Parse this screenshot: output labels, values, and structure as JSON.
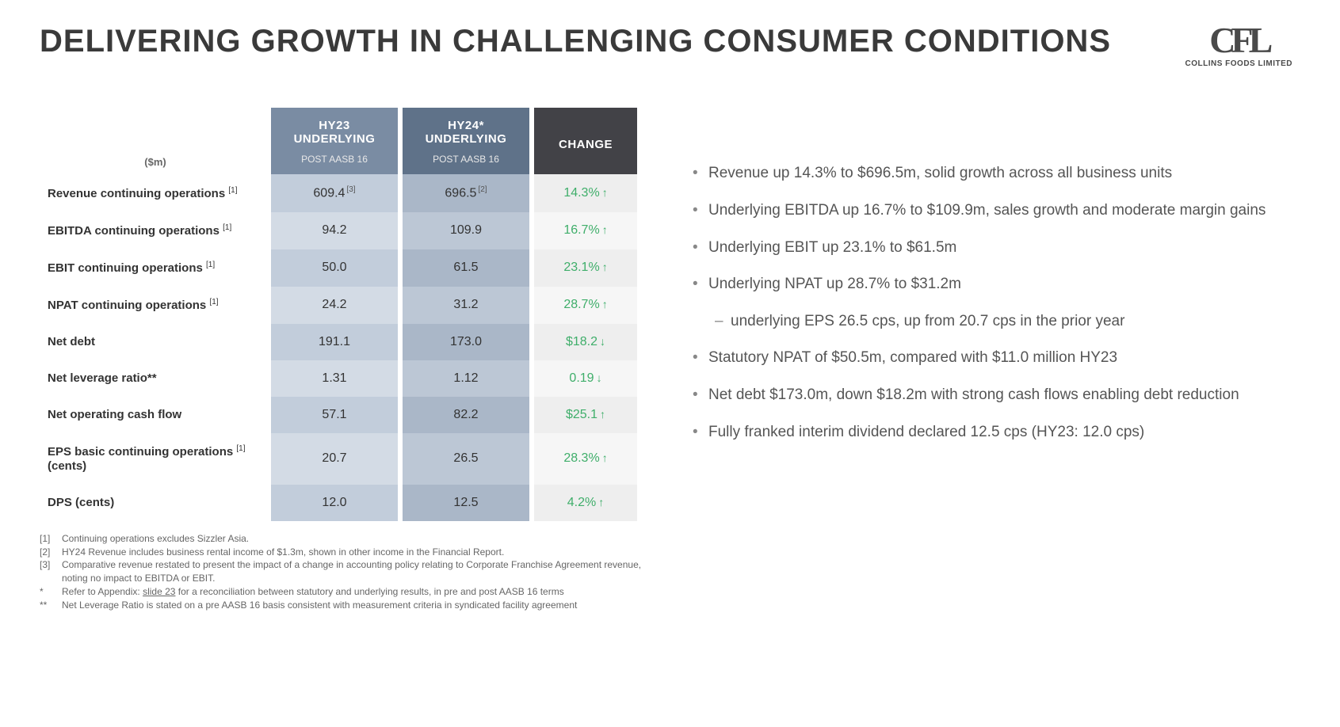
{
  "title": "DELIVERING GROWTH IN CHALLENGING CONSUMER CONDITIONS",
  "logo": {
    "mark": "CFL",
    "sub": "COLLINS FOODS LIMITED"
  },
  "table": {
    "unit_label": "($m)",
    "columns": [
      {
        "title": "HY23 UNDERLYING",
        "sub": "POST AASB 16",
        "bg": "#7a8ca3"
      },
      {
        "title": "HY24* UNDERLYING",
        "sub": "POST AASB 16",
        "bg": "#5f7289"
      },
      {
        "title": "CHANGE",
        "sub": "",
        "bg": "#424247"
      }
    ],
    "rows": [
      {
        "label": "Revenue continuing operations",
        "label_sup": "[1]",
        "v1": "609.4",
        "v1_sup": "[3]",
        "v2": "696.5",
        "v2_sup": "[2]",
        "change": "14.3%",
        "arrow": "↑"
      },
      {
        "label": "EBITDA continuing operations",
        "label_sup": "[1]",
        "v1": "94.2",
        "v2": "109.9",
        "change": "16.7%",
        "arrow": "↑"
      },
      {
        "label": "EBIT continuing operations",
        "label_sup": "[1]",
        "v1": "50.0",
        "v2": "61.5",
        "change": "23.1%",
        "arrow": "↑"
      },
      {
        "label": "NPAT continuing operations",
        "label_sup": "[1]",
        "v1": "24.2",
        "v2": "31.2",
        "change": "28.7%",
        "arrow": "↑"
      },
      {
        "label": "Net debt",
        "v1": "191.1",
        "v2": "173.0",
        "change": "$18.2",
        "arrow": "↓"
      },
      {
        "label": "Net leverage ratio**",
        "v1": "1.31",
        "v2": "1.12",
        "change": "0.19",
        "arrow": "↓"
      },
      {
        "label": "Net operating cash flow",
        "v1": "57.1",
        "v2": "82.2",
        "change": "$25.1",
        "arrow": "↑"
      },
      {
        "label": "EPS basic continuing operations [1] (cents)",
        "label_is_multiline": true,
        "label_main": "EPS basic continuing operations",
        "label_sup": "[1]",
        "label_line2": "(cents)",
        "v1": "20.7",
        "v2": "26.5",
        "change": "28.3%",
        "arrow": "↑"
      },
      {
        "label": "DPS (cents)",
        "v1": "12.0",
        "v2": "12.5",
        "change": "4.2%",
        "arrow": "↑"
      }
    ]
  },
  "bullets": [
    "Revenue up 14.3% to $696.5m, solid growth across all business units",
    "Underlying EBITDA up 16.7% to $109.9m, sales growth and moderate margin gains",
    "Underlying EBIT up 23.1% to $61.5m",
    "Underlying NPAT up 28.7% to $31.2m"
  ],
  "sub_bullet": "underlying EPS 26.5 cps, up from 20.7 cps in the prior year",
  "bullets2": [
    "Statutory NPAT of $50.5m, compared with $11.0 million HY23",
    "Net debt $173.0m, down $18.2m with strong cash flows enabling debt reduction",
    "Fully franked interim dividend declared 12.5 cps (HY23: 12.0 cps)"
  ],
  "footnotes": [
    {
      "key": "[1]",
      "text": "Continuing operations excludes Sizzler Asia."
    },
    {
      "key": "[2]",
      "text": "HY24 Revenue includes business rental income of $1.3m, shown in other income in the Financial Report."
    },
    {
      "key": "[3]",
      "text": "Comparative revenue restated to present the impact of a change in accounting policy relating to Corporate Franchise Agreement revenue, noting no impact to EBITDA or EBIT."
    },
    {
      "key": "*",
      "text_pre": "Refer to Appendix: ",
      "link": "slide 23",
      "text_post": " for a reconciliation between statutory and underlying results, in pre and post AASB 16 terms"
    },
    {
      "key": "**",
      "text": "Net Leverage Ratio is stated on a pre AASB 16 basis consistent with measurement criteria in syndicated facility agreement"
    }
  ],
  "colors": {
    "change_text": "#3fae6a",
    "header_bg1": "#7a8ca3",
    "header_bg2": "#5f7289",
    "header_bg3": "#424247"
  }
}
